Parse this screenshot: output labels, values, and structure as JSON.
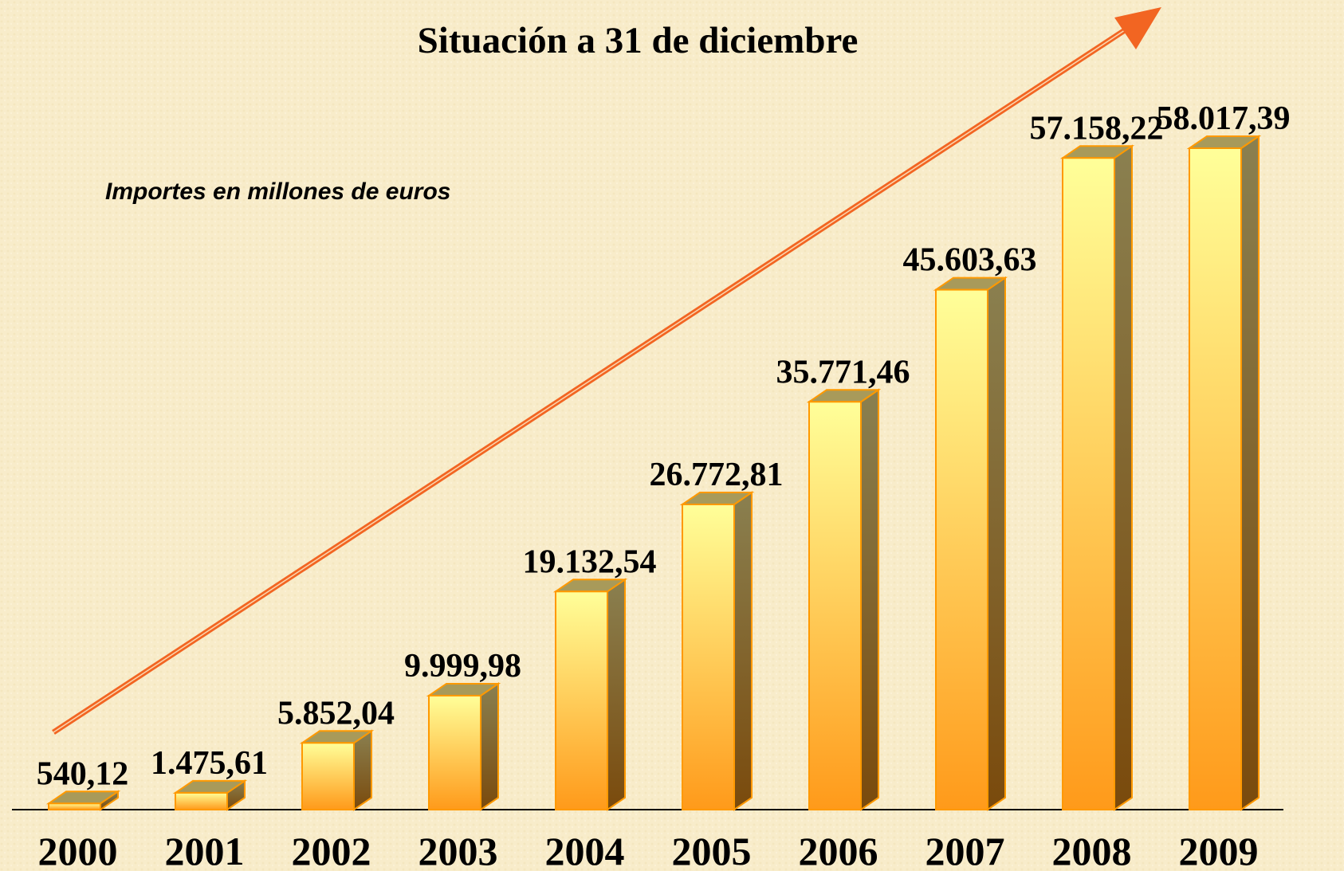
{
  "chart_data": {
    "type": "bar3d",
    "title": "Situación  a 31 de diciembre",
    "subtitle": "Importes en millones de euros",
    "categories": [
      "2000",
      "2001",
      "2002",
      "2003",
      "2004",
      "2005",
      "2006",
      "2007",
      "2008",
      "2009"
    ],
    "values": [
      540.12,
      1475.61,
      5852.04,
      9999.98,
      19132.54,
      26772.81,
      35771.46,
      45603.63,
      57158.22,
      58017.39
    ],
    "value_labels": [
      "540,12",
      "1.475,61",
      "5.852,04",
      "9.999,98",
      "19.132,54",
      "26.772,81",
      "35.771,46",
      "45.603,63",
      "57.158,22",
      "58.017,39"
    ],
    "color": "#ff9900"
  }
}
